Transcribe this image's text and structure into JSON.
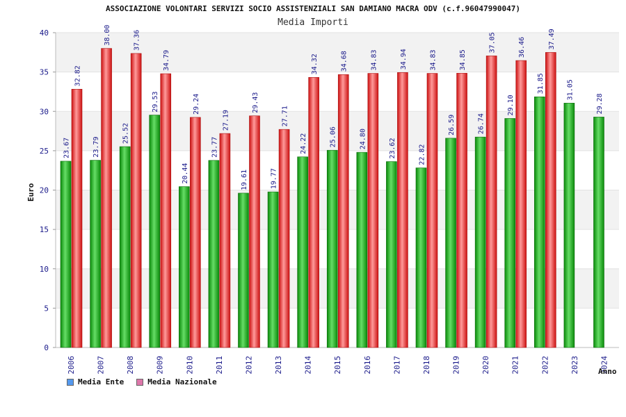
{
  "chart_data": {
    "type": "bar",
    "title": "ASSOCIAZIONE VOLONTARI SERVIZI SOCIO ASSISTENZIALI SAN DAMIANO MACRA ODV (c.f.96047990047)",
    "subtitle": "Media Importi",
    "xlabel": "Anno",
    "ylabel": "Euro",
    "ylim": [
      0,
      40
    ],
    "yticks": [
      0,
      5,
      10,
      15,
      20,
      25,
      30,
      35,
      40
    ],
    "grid": "horizontal bands",
    "legend_placement": "bottom-left",
    "categories": [
      "2006",
      "2007",
      "2008",
      "2009",
      "2010",
      "2011",
      "2012",
      "2013",
      "2014",
      "2015",
      "2016",
      "2017",
      "2018",
      "2019",
      "2020",
      "2021",
      "2022",
      "2023",
      "2024"
    ],
    "series": [
      {
        "name": "Media Ente",
        "color": "#22aa22",
        "legend_color": "#5599ee",
        "values": [
          23.67,
          23.79,
          25.52,
          29.53,
          20.44,
          23.77,
          19.61,
          19.77,
          24.22,
          25.06,
          24.8,
          23.62,
          22.82,
          26.59,
          26.74,
          29.1,
          31.85,
          31.05,
          29.28
        ],
        "labels": [
          "23.67",
          "23.79",
          "25.52",
          "29.53",
          "20.44",
          "23.77",
          "19.61",
          "19.77",
          "24.22",
          "25.06",
          "24.80",
          "23.62",
          "22.82",
          "26.59",
          "26.74",
          "29.10",
          "31.85",
          "31.05",
          "29.28"
        ]
      },
      {
        "name": "Media Nazionale",
        "color": "#ee3333",
        "legend_color": "#dd77aa",
        "values": [
          32.82,
          38.0,
          37.36,
          34.79,
          29.24,
          27.19,
          29.43,
          27.71,
          34.32,
          34.68,
          34.83,
          34.94,
          34.83,
          34.85,
          37.05,
          36.46,
          37.49,
          null,
          null
        ],
        "labels": [
          "32.82",
          "38.00",
          "37.36",
          "34.79",
          "29.24",
          "27.19",
          "29.43",
          "27.71",
          "34.32",
          "34.68",
          "34.83",
          "34.94",
          "34.83",
          "34.85",
          "37.05",
          "36.46",
          "37.49",
          null,
          null
        ]
      }
    ]
  }
}
